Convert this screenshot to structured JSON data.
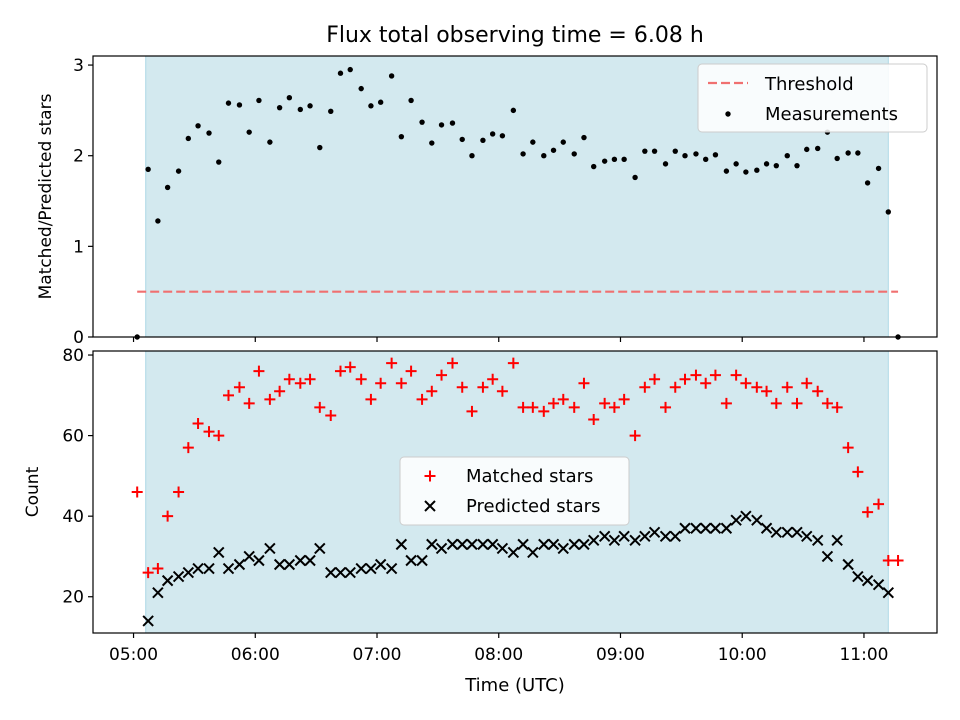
{
  "chart_data": {
    "title": "Flux total observing time = 6.08 h",
    "xlabel": "Time (UTC)",
    "x_tick_labels": [
      "05:00",
      "06:00",
      "07:00",
      "08:00",
      "09:00",
      "10:00",
      "11:00"
    ],
    "x_tick_values_hours": [
      5,
      6,
      7,
      8,
      9,
      10,
      11
    ],
    "xlim_hours": [
      4.667,
      11.6
    ],
    "observing_span_hours": [
      5.1,
      11.2
    ],
    "observing_span_color": "#d3e9ef",
    "panels": [
      {
        "type": "scatter",
        "ylabel": "Matched/Predicted stars",
        "ylim": [
          0,
          3.1
        ],
        "y_ticks": [
          0,
          1,
          2,
          3
        ],
        "legend_position": "top-right",
        "series": [
          {
            "name": "Threshold",
            "kind": "dashed-line",
            "color": "#f07070",
            "y": 0.5,
            "x_range_hours": [
              5.03,
              11.28
            ]
          },
          {
            "name": "Measurements",
            "kind": "dot",
            "color": "#000000",
            "points": [
              [
                5.03,
                0.0
              ],
              [
                5.12,
                1.85
              ],
              [
                5.2,
                1.28
              ],
              [
                5.28,
                1.65
              ],
              [
                5.37,
                1.83
              ],
              [
                5.45,
                2.19
              ],
              [
                5.53,
                2.33
              ],
              [
                5.62,
                2.25
              ],
              [
                5.7,
                1.93
              ],
              [
                5.78,
                2.58
              ],
              [
                5.87,
                2.56
              ],
              [
                5.95,
                2.26
              ],
              [
                6.03,
                2.61
              ],
              [
                6.12,
                2.15
              ],
              [
                6.2,
                2.53
              ],
              [
                6.28,
                2.64
              ],
              [
                6.37,
                2.51
              ],
              [
                6.45,
                2.55
              ],
              [
                6.53,
                2.09
              ],
              [
                6.62,
                2.49
              ],
              [
                6.7,
                2.91
              ],
              [
                6.78,
                2.95
              ],
              [
                6.87,
                2.74
              ],
              [
                6.95,
                2.55
              ],
              [
                7.03,
                2.59
              ],
              [
                7.12,
                2.88
              ],
              [
                7.2,
                2.21
              ],
              [
                7.28,
                2.61
              ],
              [
                7.37,
                2.37
              ],
              [
                7.45,
                2.14
              ],
              [
                7.53,
                2.34
              ],
              [
                7.62,
                2.36
              ],
              [
                7.7,
                2.18
              ],
              [
                7.78,
                2.0
              ],
              [
                7.87,
                2.17
              ],
              [
                7.95,
                2.24
              ],
              [
                8.03,
                2.22
              ],
              [
                8.12,
                2.5
              ],
              [
                8.2,
                2.02
              ],
              [
                8.28,
                2.15
              ],
              [
                8.37,
                2.0
              ],
              [
                8.45,
                2.06
              ],
              [
                8.53,
                2.15
              ],
              [
                8.62,
                2.02
              ],
              [
                8.7,
                2.2
              ],
              [
                8.78,
                1.88
              ],
              [
                8.87,
                1.94
              ],
              [
                8.95,
                1.96
              ],
              [
                9.03,
                1.96
              ],
              [
                9.12,
                1.76
              ],
              [
                9.2,
                2.05
              ],
              [
                9.28,
                2.05
              ],
              [
                9.37,
                1.91
              ],
              [
                9.45,
                2.05
              ],
              [
                9.53,
                2.0
              ],
              [
                9.62,
                2.02
              ],
              [
                9.7,
                1.96
              ],
              [
                9.78,
                2.01
              ],
              [
                9.87,
                1.83
              ],
              [
                9.95,
                1.91
              ],
              [
                10.03,
                1.82
              ],
              [
                10.12,
                1.84
              ],
              [
                10.2,
                1.91
              ],
              [
                10.28,
                1.89
              ],
              [
                10.37,
                2.0
              ],
              [
                10.45,
                1.89
              ],
              [
                10.53,
                2.07
              ],
              [
                10.62,
                2.08
              ],
              [
                10.7,
                2.26
              ],
              [
                10.78,
                1.97
              ],
              [
                10.87,
                2.03
              ],
              [
                10.95,
                2.03
              ],
              [
                11.03,
                1.7
              ],
              [
                11.12,
                1.86
              ],
              [
                11.2,
                1.38
              ],
              [
                11.28,
                0.0
              ]
            ]
          }
        ]
      },
      {
        "type": "scatter",
        "ylabel": "Count",
        "ylim": [
          11,
          81
        ],
        "y_ticks": [
          20,
          40,
          60,
          80
        ],
        "legend_position": "center",
        "series": [
          {
            "name": "Matched stars",
            "marker": "plus",
            "color": "#ff0000",
            "points": [
              [
                5.03,
                46
              ],
              [
                5.12,
                26
              ],
              [
                5.2,
                27
              ],
              [
                5.28,
                40
              ],
              [
                5.37,
                46
              ],
              [
                5.45,
                57
              ],
              [
                5.53,
                63
              ],
              [
                5.62,
                61
              ],
              [
                5.7,
                60
              ],
              [
                5.78,
                70
              ],
              [
                5.87,
                72
              ],
              [
                5.95,
                68
              ],
              [
                6.03,
                76
              ],
              [
                6.12,
                69
              ],
              [
                6.2,
                71
              ],
              [
                6.28,
                74
              ],
              [
                6.37,
                73
              ],
              [
                6.45,
                74
              ],
              [
                6.53,
                67
              ],
              [
                6.62,
                65
              ],
              [
                6.7,
                76
              ],
              [
                6.78,
                77
              ],
              [
                6.87,
                74
              ],
              [
                6.95,
                69
              ],
              [
                7.03,
                73
              ],
              [
                7.12,
                78
              ],
              [
                7.2,
                73
              ],
              [
                7.28,
                76
              ],
              [
                7.37,
                69
              ],
              [
                7.45,
                71
              ],
              [
                7.53,
                75
              ],
              [
                7.62,
                78
              ],
              [
                7.7,
                72
              ],
              [
                7.78,
                66
              ],
              [
                7.87,
                72
              ],
              [
                7.95,
                74
              ],
              [
                8.03,
                71
              ],
              [
                8.12,
                78
              ],
              [
                8.2,
                67
              ],
              [
                8.28,
                67
              ],
              [
                8.37,
                66
              ],
              [
                8.45,
                68
              ],
              [
                8.53,
                69
              ],
              [
                8.62,
                67
              ],
              [
                8.7,
                73
              ],
              [
                8.78,
                64
              ],
              [
                8.87,
                68
              ],
              [
                8.95,
                67
              ],
              [
                9.03,
                69
              ],
              [
                9.12,
                60
              ],
              [
                9.2,
                72
              ],
              [
                9.28,
                74
              ],
              [
                9.37,
                67
              ],
              [
                9.45,
                72
              ],
              [
                9.53,
                74
              ],
              [
                9.62,
                75
              ],
              [
                9.7,
                73
              ],
              [
                9.78,
                75
              ],
              [
                9.87,
                68
              ],
              [
                9.95,
                75
              ],
              [
                10.03,
                73
              ],
              [
                10.12,
                72
              ],
              [
                10.2,
                71
              ],
              [
                10.28,
                68
              ],
              [
                10.37,
                72
              ],
              [
                10.45,
                68
              ],
              [
                10.53,
                73
              ],
              [
                10.62,
                71
              ],
              [
                10.7,
                68
              ],
              [
                10.78,
                67
              ],
              [
                10.87,
                57
              ],
              [
                10.95,
                51
              ],
              [
                11.03,
                41
              ],
              [
                11.12,
                43
              ],
              [
                11.2,
                29
              ],
              [
                11.28,
                29
              ]
            ]
          },
          {
            "name": "Predicted stars",
            "marker": "x",
            "color": "#000000",
            "points": [
              [
                5.12,
                14
              ],
              [
                5.2,
                21
              ],
              [
                5.28,
                24
              ],
              [
                5.37,
                25
              ],
              [
                5.45,
                26
              ],
              [
                5.53,
                27
              ],
              [
                5.62,
                27
              ],
              [
                5.7,
                31
              ],
              [
                5.78,
                27
              ],
              [
                5.87,
                28
              ],
              [
                5.95,
                30
              ],
              [
                6.03,
                29
              ],
              [
                6.12,
                32
              ],
              [
                6.2,
                28
              ],
              [
                6.28,
                28
              ],
              [
                6.37,
                29
              ],
              [
                6.45,
                29
              ],
              [
                6.53,
                32
              ],
              [
                6.62,
                26
              ],
              [
                6.7,
                26
              ],
              [
                6.78,
                26
              ],
              [
                6.87,
                27
              ],
              [
                6.95,
                27
              ],
              [
                7.03,
                28
              ],
              [
                7.12,
                27
              ],
              [
                7.2,
                33
              ],
              [
                7.28,
                29
              ],
              [
                7.37,
                29
              ],
              [
                7.45,
                33
              ],
              [
                7.53,
                32
              ],
              [
                7.62,
                33
              ],
              [
                7.7,
                33
              ],
              [
                7.78,
                33
              ],
              [
                7.87,
                33
              ],
              [
                7.95,
                33
              ],
              [
                8.03,
                32
              ],
              [
                8.12,
                31
              ],
              [
                8.2,
                33
              ],
              [
                8.28,
                31
              ],
              [
                8.37,
                33
              ],
              [
                8.45,
                33
              ],
              [
                8.53,
                32
              ],
              [
                8.62,
                33
              ],
              [
                8.7,
                33
              ],
              [
                8.78,
                34
              ],
              [
                8.87,
                35
              ],
              [
                8.95,
                34
              ],
              [
                9.03,
                35
              ],
              [
                9.12,
                34
              ],
              [
                9.2,
                35
              ],
              [
                9.28,
                36
              ],
              [
                9.37,
                35
              ],
              [
                9.45,
                35
              ],
              [
                9.53,
                37
              ],
              [
                9.62,
                37
              ],
              [
                9.7,
                37
              ],
              [
                9.78,
                37
              ],
              [
                9.87,
                37
              ],
              [
                9.95,
                39
              ],
              [
                10.03,
                40
              ],
              [
                10.12,
                39
              ],
              [
                10.2,
                37
              ],
              [
                10.28,
                36
              ],
              [
                10.37,
                36
              ],
              [
                10.45,
                36
              ],
              [
                10.53,
                35
              ],
              [
                10.62,
                34
              ],
              [
                10.7,
                30
              ],
              [
                10.78,
                34
              ],
              [
                10.87,
                28
              ],
              [
                10.95,
                25
              ],
              [
                11.03,
                24
              ],
              [
                11.12,
                23
              ],
              [
                11.2,
                21
              ]
            ]
          }
        ]
      }
    ]
  }
}
